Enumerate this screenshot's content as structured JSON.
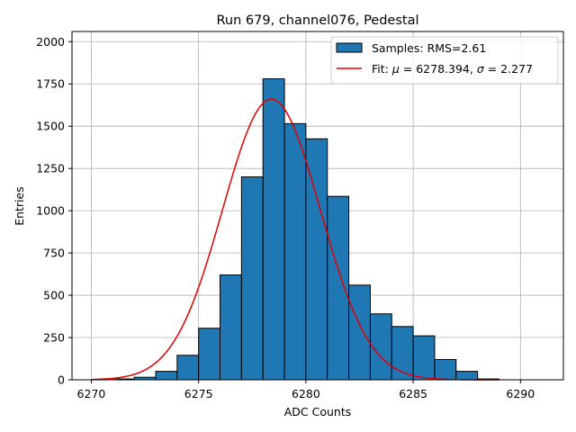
{
  "chart_data": {
    "type": "bar",
    "title": "Run 679, channel076, Pedestal",
    "xlabel": "ADC Counts",
    "ylabel": "Entries",
    "xlim": [
      6269.1,
      6292.0
    ],
    "ylim": [
      0,
      2060
    ],
    "xticks": [
      6270,
      6275,
      6280,
      6285,
      6290
    ],
    "yticks": [
      0,
      250,
      500,
      750,
      1000,
      1250,
      1500,
      1750,
      2000
    ],
    "grid": true,
    "legend_position": "top-right",
    "colors": {
      "bar_fill": "#1f77b4",
      "bar_edge": "#000000",
      "fit_line": "#e00000",
      "grid": "#b0b0b0"
    },
    "histogram": {
      "name": "Samples: RMS=2.61",
      "bin_width": 1,
      "bin_edges_start": 6271,
      "counts": [
        5,
        15,
        50,
        145,
        305,
        620,
        1200,
        1780,
        1515,
        1425,
        1085,
        560,
        390,
        315,
        260,
        120,
        50,
        5
      ]
    },
    "fit": {
      "name": "Fit: μ = 6278.394, σ = 2.277",
      "label_prefix": "Fit: ",
      "mu_symbol": "μ",
      "sigma_symbol": "σ",
      "mu": 6278.394,
      "sigma": 2.277,
      "amplitude": 1660,
      "x_range": [
        6270,
        6289
      ]
    }
  }
}
